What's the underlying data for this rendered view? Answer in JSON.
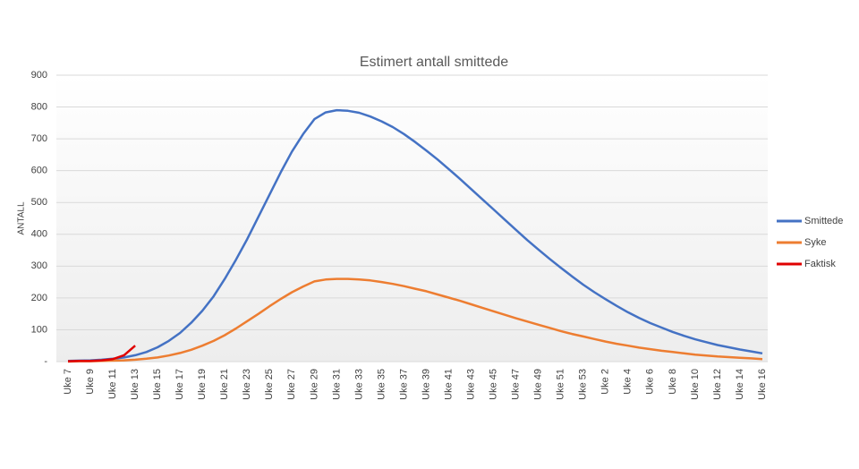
{
  "chart_data": {
    "type": "line",
    "title": "Estimert antall smittede",
    "y_label": "ANTALL",
    "categories": [
      "Uke 7",
      null,
      "Uke 9",
      null,
      "Uke 11",
      null,
      "Uke 13",
      null,
      "Uke 15",
      null,
      "Uke 17",
      null,
      "Uke 19",
      null,
      "Uke 21",
      null,
      "Uke 23",
      null,
      "Uke 25",
      null,
      "Uke 27",
      null,
      "Uke 29",
      null,
      "Uke 31",
      null,
      "Uke 33",
      null,
      "Uke 35",
      null,
      "Uke 37",
      null,
      "Uke 39",
      null,
      "Uke 41",
      null,
      "Uke 43",
      null,
      "Uke 45",
      null,
      "Uke 47",
      null,
      "Uke 49",
      null,
      "Uke 51",
      null,
      "Uke 53",
      null,
      "Uke 2",
      null,
      "Uke 4",
      null,
      "Uke 6",
      null,
      "Uke 8",
      null,
      "Uke 10",
      null,
      "Uke 12",
      null,
      "Uke 14",
      null,
      "Uke 16"
    ],
    "series": [
      {
        "name": "Smittede",
        "color": "#4472c4",
        "values": [
          2,
          3,
          4,
          6,
          9,
          13,
          20,
          30,
          45,
          65,
          90,
          122,
          160,
          205,
          260,
          320,
          385,
          455,
          525,
          595,
          660,
          715,
          762,
          783,
          790,
          788,
          782,
          770,
          755,
          737,
          715,
          690,
          663,
          635,
          605,
          574,
          542,
          510,
          478,
          446,
          414,
          382,
          352,
          323,
          295,
          268,
          242,
          218,
          196,
          175,
          155,
          137,
          121,
          107,
          93,
          81,
          70,
          61,
          52,
          45,
          38,
          32,
          26
        ]
      },
      {
        "name": "Syke",
        "color": "#ed7d31",
        "values": [
          0,
          1,
          1,
          2,
          3,
          4,
          6,
          9,
          13,
          19,
          27,
          37,
          50,
          65,
          83,
          104,
          127,
          150,
          174,
          197,
          218,
          236,
          252,
          258,
          260,
          260,
          258,
          255,
          250,
          244,
          237,
          229,
          221,
          211,
          201,
          191,
          180,
          169,
          158,
          147,
          136,
          126,
          116,
          106,
          96,
          87,
          79,
          71,
          63,
          56,
          50,
          44,
          39,
          34,
          30,
          26,
          22,
          19,
          16,
          14,
          12,
          10,
          8
        ]
      },
      {
        "name": "Faktisk",
        "color": "#e00000",
        "values": [
          1,
          2,
          2,
          4,
          8,
          20,
          50,
          null,
          null,
          null,
          null,
          null,
          null,
          null,
          null,
          null,
          null,
          null,
          null,
          null,
          null,
          null,
          null,
          null,
          null,
          null,
          null,
          null,
          null,
          null,
          null,
          null,
          null,
          null,
          null,
          null,
          null,
          null,
          null,
          null,
          null,
          null,
          null,
          null,
          null,
          null,
          null,
          null,
          null,
          null,
          null,
          null,
          null,
          null,
          null,
          null,
          null,
          null,
          null,
          null,
          null,
          null,
          null
        ]
      }
    ],
    "ylim": [
      0,
      900
    ],
    "yticks": [
      {
        "value": 0,
        "label": "-"
      },
      100,
      200,
      300,
      400,
      500,
      600,
      700,
      800,
      900
    ],
    "grid": true,
    "legend": "right"
  }
}
